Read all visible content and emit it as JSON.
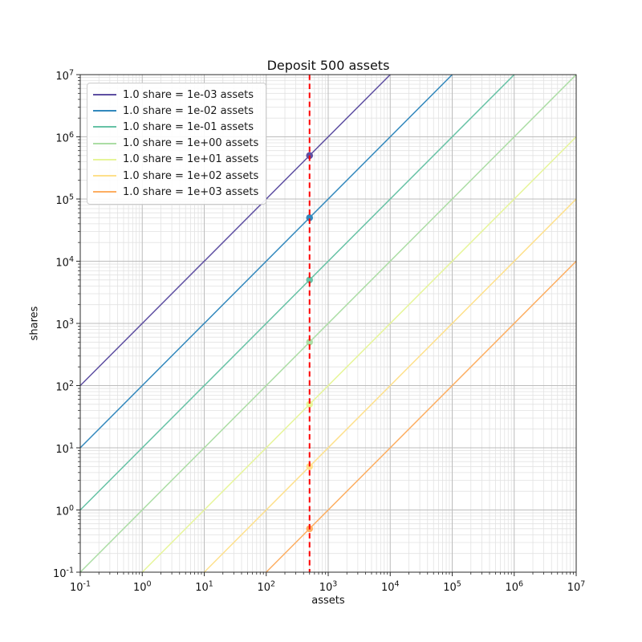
{
  "chart_data": {
    "type": "line",
    "title": "Deposit 500 assets",
    "xlabel": "assets",
    "ylabel": "shares",
    "xscale": "log",
    "yscale": "log",
    "xlim": [
      0.1,
      10000000
    ],
    "ylim": [
      0.1,
      10000000
    ],
    "x_tick_labels": [
      "10^-1",
      "10^0",
      "10^1",
      "10^2",
      "10^3",
      "10^4",
      "10^5",
      "10^6",
      "10^7"
    ],
    "y_tick_labels": [
      "10^-1",
      "10^0",
      "10^1",
      "10^2",
      "10^3",
      "10^4",
      "10^5",
      "10^6",
      "10^7"
    ],
    "grid": {
      "which": "both",
      "major_color": "#bcbcbc",
      "minor_color": "#e2e2e2"
    },
    "legend_position": "upper left",
    "series": [
      {
        "label": "1.0 share = 1e-03 assets",
        "color": "#5e4fa2",
        "assets_per_share": 0.001
      },
      {
        "label": "1.0 share = 1e-02 assets",
        "color": "#3288bd",
        "assets_per_share": 0.01
      },
      {
        "label": "1.0 share = 1e-01 assets",
        "color": "#66c2a5",
        "assets_per_share": 0.1
      },
      {
        "label": "1.0 share = 1e+00 assets",
        "color": "#abdda4",
        "assets_per_share": 1
      },
      {
        "label": "1.0 share = 1e+01 assets",
        "color": "#e6f598",
        "assets_per_share": 10
      },
      {
        "label": "1.0 share = 1e+02 assets",
        "color": "#fee08b",
        "assets_per_share": 100
      },
      {
        "label": "1.0 share = 1e+03 assets",
        "color": "#fdae61",
        "assets_per_share": 1000
      }
    ],
    "deposit_line": {
      "x": 500,
      "color": "#ff0000",
      "style": "dashed"
    },
    "points": [
      {
        "x": 500,
        "y": 500000,
        "color": "#5e4fa2"
      },
      {
        "x": 500,
        "y": 50000,
        "color": "#3288bd"
      },
      {
        "x": 500,
        "y": 5000,
        "color": "#66c2a5"
      },
      {
        "x": 500,
        "y": 500,
        "color": "#abdda4"
      },
      {
        "x": 500,
        "y": 50,
        "color": "#e6f598"
      },
      {
        "x": 500,
        "y": 5,
        "color": "#fee08b"
      },
      {
        "x": 500,
        "y": 0.5,
        "color": "#fdae61"
      }
    ]
  }
}
